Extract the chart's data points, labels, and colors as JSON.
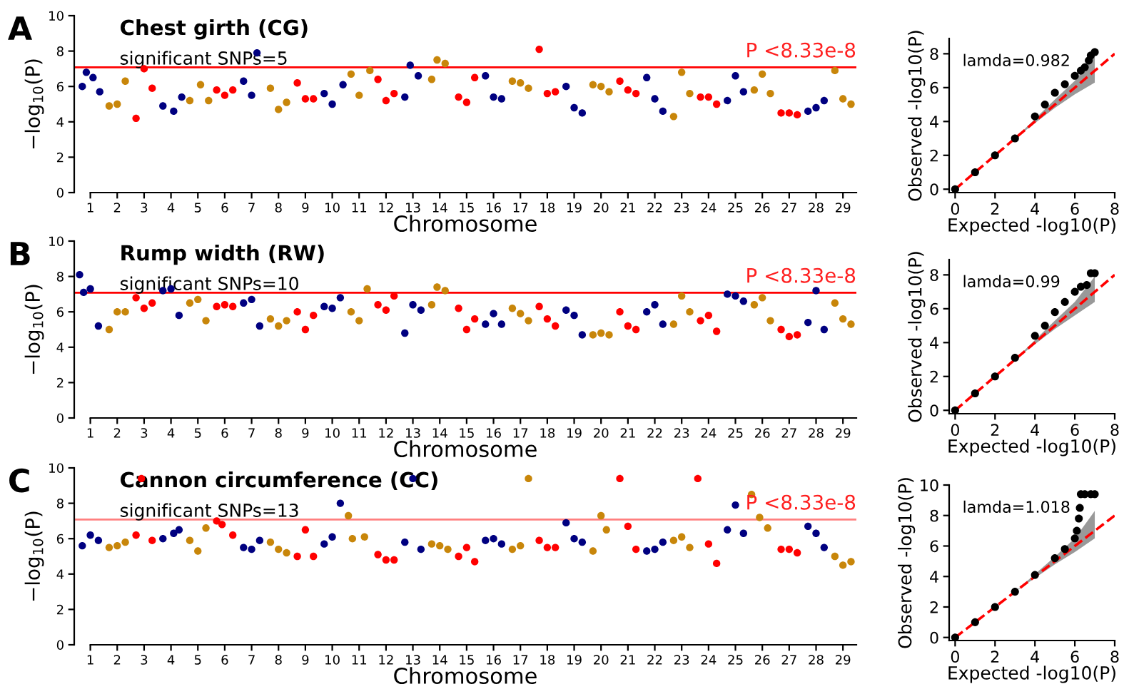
{
  "chart_data": [
    {
      "type": "scatter",
      "title": "Chest girth (CG)",
      "subtitle": "significant SNPs=5",
      "xlabel": "Chromosome",
      "ylabel": "−log$_{10}$(P)",
      "marker": "circle",
      "annotations": [
        "A"
      ],
      "ref_lines": [
        {
          "axis": "y",
          "value": 7.08,
          "color": "#ff0000",
          "label": "P <8.33e-8"
        }
      ],
      "xlim": [
        0.4,
        29.5
      ],
      "xticks": [
        1,
        2,
        3,
        4,
        5,
        6,
        7,
        8,
        9,
        10,
        11,
        12,
        13,
        14,
        15,
        16,
        17,
        18,
        19,
        20,
        21,
        22,
        23,
        24,
        25,
        26,
        27,
        28,
        29
      ],
      "ylim": [
        0,
        10
      ],
      "yticks": [
        0,
        2,
        4,
        6,
        8,
        10
      ],
      "series": [
        {
          "color": "#000080",
          "x": [
            0.7,
            0.85,
            1.1,
            1.35
          ],
          "values": [
            6.0,
            6.8,
            6.5,
            5.7
          ]
        },
        {
          "color": "#c8860a",
          "x": [
            1.7,
            2.0,
            2.3
          ],
          "values": [
            4.9,
            5.0,
            6.3
          ]
        },
        {
          "color": "#ff0000",
          "x": [
            2.7,
            3.0,
            3.3
          ],
          "values": [
            4.2,
            7.0,
            5.9
          ]
        },
        {
          "color": "#000080",
          "x": [
            3.7,
            4.1,
            4.4
          ],
          "values": [
            4.9,
            4.6,
            5.4
          ]
        },
        {
          "color": "#c8860a",
          "x": [
            4.7,
            5.1,
            5.4
          ],
          "values": [
            5.2,
            6.1,
            5.2
          ]
        },
        {
          "color": "#ff0000",
          "x": [
            5.7,
            6.0,
            6.3
          ],
          "values": [
            5.8,
            5.5,
            5.8
          ]
        },
        {
          "color": "#000080",
          "x": [
            6.7,
            7.0,
            7.2
          ],
          "values": [
            6.3,
            5.5,
            7.9
          ]
        },
        {
          "color": "#c8860a",
          "x": [
            7.7,
            8.0,
            8.3
          ],
          "values": [
            5.9,
            4.7,
            5.1
          ]
        },
        {
          "color": "#ff0000",
          "x": [
            8.7,
            9.0,
            9.3
          ],
          "values": [
            6.2,
            5.3,
            5.3
          ]
        },
        {
          "color": "#000080",
          "x": [
            9.7,
            10.0,
            10.4
          ],
          "values": [
            5.6,
            5.0,
            6.1
          ]
        },
        {
          "color": "#c8860a",
          "x": [
            10.7,
            11.0,
            11.4
          ],
          "values": [
            6.7,
            5.5,
            6.9
          ]
        },
        {
          "color": "#ff0000",
          "x": [
            11.7,
            12.0,
            12.3
          ],
          "values": [
            6.4,
            5.2,
            5.6
          ]
        },
        {
          "color": "#000080",
          "x": [
            12.7,
            12.9,
            13.2
          ],
          "values": [
            5.4,
            7.2,
            6.6
          ]
        },
        {
          "color": "#c8860a",
          "x": [
            13.7,
            13.9,
            14.2
          ],
          "values": [
            6.4,
            7.5,
            7.3
          ]
        },
        {
          "color": "#ff0000",
          "x": [
            14.7,
            15.0,
            15.3
          ],
          "values": [
            5.4,
            5.1,
            6.5
          ]
        },
        {
          "color": "#000080",
          "x": [
            15.7,
            16.0,
            16.3
          ],
          "values": [
            6.6,
            5.4,
            5.3
          ]
        },
        {
          "color": "#c8860a",
          "x": [
            16.7,
            17.0,
            17.3
          ],
          "values": [
            6.3,
            6.2,
            5.9
          ]
        },
        {
          "color": "#ff0000",
          "x": [
            17.7,
            18.0,
            18.3
          ],
          "values": [
            8.1,
            5.6,
            5.7
          ]
        },
        {
          "color": "#000080",
          "x": [
            18.7,
            19.0,
            19.3
          ],
          "values": [
            6.0,
            4.8,
            4.5
          ]
        },
        {
          "color": "#c8860a",
          "x": [
            19.7,
            20.0,
            20.3
          ],
          "values": [
            6.1,
            6.0,
            5.7
          ]
        },
        {
          "color": "#ff0000",
          "x": [
            20.7,
            21.0,
            21.3
          ],
          "values": [
            6.3,
            5.8,
            5.6
          ]
        },
        {
          "color": "#000080",
          "x": [
            21.7,
            22.0,
            22.3
          ],
          "values": [
            6.5,
            5.3,
            4.6
          ]
        },
        {
          "color": "#c8860a",
          "x": [
            22.7,
            23.0,
            23.3
          ],
          "values": [
            4.3,
            6.8,
            5.6
          ]
        },
        {
          "color": "#ff0000",
          "x": [
            23.7,
            24.0,
            24.3
          ],
          "values": [
            5.4,
            5.4,
            5.0
          ]
        },
        {
          "color": "#000080",
          "x": [
            24.7,
            25.0,
            25.3
          ],
          "values": [
            5.2,
            6.6,
            5.7
          ]
        },
        {
          "color": "#c8860a",
          "x": [
            25.7,
            26.0,
            26.3
          ],
          "values": [
            5.8,
            6.7,
            5.6
          ]
        },
        {
          "color": "#ff0000",
          "x": [
            26.7,
            27.0,
            27.3
          ],
          "values": [
            4.5,
            4.5,
            4.4
          ]
        },
        {
          "color": "#000080",
          "x": [
            27.7,
            28.0,
            28.3
          ],
          "values": [
            4.6,
            4.8,
            5.2
          ]
        },
        {
          "color": "#c8860a",
          "x": [
            28.7,
            29.0,
            29.3
          ],
          "values": [
            6.9,
            5.3,
            5.0
          ]
        }
      ]
    },
    {
      "type": "scatter",
      "xlabel": "Expected -log10(P)",
      "ylabel": "Observed -log10(P)",
      "annotations": [
        "lamda=0.982"
      ],
      "xlim": [
        -0.3,
        8
      ],
      "xticks": [
        0,
        2,
        4,
        6,
        8
      ],
      "ylim": [
        -0.2,
        8.9
      ],
      "yticks": [
        0,
        2,
        4,
        6,
        8
      ],
      "series": [
        {
          "type": "line",
          "line_style": "dashed",
          "color": "#ff0000",
          "x": [
            0,
            3,
            5,
            6,
            7,
            8
          ],
          "values": [
            0,
            3,
            5,
            6,
            7,
            8
          ],
          "lower": [
            0,
            3,
            4.8,
            5.6,
            6.3,
            null
          ],
          "upper": [
            0,
            3,
            5.3,
            6.4,
            7.9,
            null
          ]
        },
        {
          "color": "#000000",
          "marker": "circle",
          "x": [
            0,
            1,
            2,
            3,
            4,
            4.5,
            5,
            5.5,
            6,
            6.3,
            6.5,
            6.7,
            6.8,
            7.0
          ],
          "values": [
            0,
            1,
            2,
            3,
            4.3,
            5,
            5.7,
            6.2,
            6.7,
            7.0,
            7.2,
            7.6,
            7.9,
            8.1
          ]
        }
      ]
    },
    {
      "type": "scatter",
      "title": "Rump width (RW)",
      "subtitle": "significant SNPs=10",
      "xlabel": "Chromosome",
      "ylabel": "−log$_{10}$(P)",
      "marker": "circle",
      "annotations": [
        "B"
      ],
      "ref_lines": [
        {
          "axis": "y",
          "value": 7.08,
          "color": "#ff0000",
          "label": "P <8.33e-8"
        }
      ],
      "xlim": [
        0.4,
        29.5
      ],
      "xticks": [
        1,
        2,
        3,
        4,
        5,
        6,
        7,
        8,
        9,
        10,
        11,
        12,
        13,
        14,
        15,
        16,
        17,
        18,
        19,
        20,
        21,
        22,
        23,
        24,
        25,
        26,
        27,
        28,
        29
      ],
      "ylim": [
        0,
        10
      ],
      "yticks": [
        0,
        2,
        4,
        6,
        8,
        10
      ],
      "series": [
        {
          "color": "#000080",
          "x": [
            0.6,
            0.75,
            1.0,
            1.3
          ],
          "values": [
            8.1,
            7.1,
            7.3,
            5.2
          ]
        },
        {
          "color": "#c8860a",
          "x": [
            1.7,
            2.0,
            2.3
          ],
          "values": [
            5.0,
            6.0,
            6.0
          ]
        },
        {
          "color": "#ff0000",
          "x": [
            2.7,
            3.0,
            3.3
          ],
          "values": [
            6.8,
            6.2,
            6.5
          ]
        },
        {
          "color": "#000080",
          "x": [
            3.7,
            4.0,
            4.3
          ],
          "values": [
            7.2,
            7.3,
            5.8
          ]
        },
        {
          "color": "#c8860a",
          "x": [
            4.7,
            5.0,
            5.3
          ],
          "values": [
            6.5,
            6.7,
            5.5
          ]
        },
        {
          "color": "#ff0000",
          "x": [
            5.7,
            6.0,
            6.3
          ],
          "values": [
            6.3,
            6.4,
            6.3
          ]
        },
        {
          "color": "#000080",
          "x": [
            6.7,
            7.0,
            7.3
          ],
          "values": [
            6.5,
            6.7,
            5.2
          ]
        },
        {
          "color": "#c8860a",
          "x": [
            7.7,
            8.0,
            8.3
          ],
          "values": [
            5.6,
            5.2,
            5.5
          ]
        },
        {
          "color": "#ff0000",
          "x": [
            8.7,
            9.0,
            9.3
          ],
          "values": [
            6.0,
            5.0,
            5.8
          ]
        },
        {
          "color": "#000080",
          "x": [
            9.7,
            10.0,
            10.3
          ],
          "values": [
            6.3,
            6.2,
            6.8
          ]
        },
        {
          "color": "#c8860a",
          "x": [
            10.7,
            11.0,
            11.3
          ],
          "values": [
            6.0,
            5.5,
            7.3
          ]
        },
        {
          "color": "#ff0000",
          "x": [
            11.7,
            12.0,
            12.3
          ],
          "values": [
            6.4,
            6.1,
            6.9
          ]
        },
        {
          "color": "#000080",
          "x": [
            12.7,
            13.0,
            13.3
          ],
          "values": [
            4.8,
            6.4,
            6.1
          ]
        },
        {
          "color": "#c8860a",
          "x": [
            13.7,
            13.9,
            14.2
          ],
          "values": [
            6.4,
            7.4,
            7.2
          ]
        },
        {
          "color": "#ff0000",
          "x": [
            14.7,
            15.0,
            15.3
          ],
          "values": [
            6.2,
            5.0,
            5.6
          ]
        },
        {
          "color": "#000080",
          "x": [
            15.7,
            16.0,
            16.3
          ],
          "values": [
            5.3,
            5.9,
            5.3
          ]
        },
        {
          "color": "#c8860a",
          "x": [
            16.7,
            17.0,
            17.3
          ],
          "values": [
            6.2,
            5.9,
            5.5
          ]
        },
        {
          "color": "#ff0000",
          "x": [
            17.7,
            18.0,
            18.3
          ],
          "values": [
            6.3,
            5.6,
            5.2
          ]
        },
        {
          "color": "#000080",
          "x": [
            18.7,
            19.0,
            19.3
          ],
          "values": [
            6.1,
            5.8,
            4.7
          ]
        },
        {
          "color": "#c8860a",
          "x": [
            19.7,
            20.0,
            20.3
          ],
          "values": [
            4.7,
            4.8,
            4.7
          ]
        },
        {
          "color": "#ff0000",
          "x": [
            20.7,
            21.0,
            21.3
          ],
          "values": [
            6.0,
            5.2,
            5.0
          ]
        },
        {
          "color": "#000080",
          "x": [
            21.7,
            22.0,
            22.3
          ],
          "values": [
            6.0,
            6.4,
            5.3
          ]
        },
        {
          "color": "#c8860a",
          "x": [
            22.7,
            23.0,
            23.3
          ],
          "values": [
            5.3,
            6.9,
            6.0
          ]
        },
        {
          "color": "#ff0000",
          "x": [
            23.7,
            24.0,
            24.3
          ],
          "values": [
            5.5,
            5.8,
            4.9
          ]
        },
        {
          "color": "#000080",
          "x": [
            24.7,
            25.0,
            25.3
          ],
          "values": [
            7.0,
            6.9,
            6.6
          ]
        },
        {
          "color": "#c8860a",
          "x": [
            25.7,
            26.0,
            26.3
          ],
          "values": [
            6.4,
            6.8,
            5.5
          ]
        },
        {
          "color": "#ff0000",
          "x": [
            26.7,
            27.0,
            27.3
          ],
          "values": [
            5.0,
            4.6,
            4.7
          ]
        },
        {
          "color": "#000080",
          "x": [
            27.7,
            28.0,
            28.3
          ],
          "values": [
            5.4,
            7.2,
            5.0
          ]
        },
        {
          "color": "#c8860a",
          "x": [
            28.7,
            29.0,
            29.3
          ],
          "values": [
            6.5,
            5.6,
            5.3
          ]
        }
      ]
    },
    {
      "type": "scatter",
      "xlabel": "Expected -log10(P)",
      "ylabel": "Observed -log10(P)",
      "annotations": [
        "lamda=0.99"
      ],
      "xlim": [
        -0.3,
        8
      ],
      "xticks": [
        0,
        2,
        4,
        6,
        8
      ],
      "ylim": [
        -0.2,
        8.9
      ],
      "yticks": [
        0,
        2,
        4,
        6,
        8
      ],
      "series": [
        {
          "type": "line",
          "line_style": "dashed",
          "color": "#ff0000",
          "x": [
            0,
            3,
            5,
            6,
            7,
            8
          ],
          "values": [
            0,
            3,
            5,
            6,
            7,
            8
          ],
          "lower": [
            0,
            3,
            4.8,
            5.6,
            6.4,
            null
          ],
          "upper": [
            0,
            3,
            5.3,
            6.4,
            7.9,
            null
          ]
        },
        {
          "color": "#000000",
          "marker": "circle",
          "x": [
            0,
            1,
            2,
            3,
            4,
            4.5,
            5,
            5.5,
            6,
            6.3,
            6.6,
            6.8,
            7.0
          ],
          "values": [
            0,
            1,
            2,
            3.1,
            4.4,
            5,
            5.8,
            6.4,
            7.0,
            7.3,
            7.4,
            8.1,
            8.1
          ]
        }
      ]
    },
    {
      "type": "scatter",
      "title": "Cannon circumference (CC)",
      "subtitle": "significant SNPs=13",
      "xlabel": "Chromosome",
      "ylabel": "−log$_{10}$(P)",
      "marker": "circle",
      "annotations": [
        "C"
      ],
      "ref_lines": [
        {
          "axis": "y",
          "value": 7.08,
          "color": "#ff8080",
          "label": "P <8.33e-8"
        }
      ],
      "xlim": [
        0.4,
        29.5
      ],
      "xticks": [
        1,
        2,
        3,
        4,
        5,
        6,
        7,
        8,
        9,
        10,
        11,
        12,
        13,
        14,
        15,
        16,
        17,
        18,
        19,
        20,
        21,
        22,
        23,
        24,
        25,
        26,
        27,
        28,
        29
      ],
      "ylim": [
        0,
        10
      ],
      "yticks": [
        0,
        2,
        4,
        6,
        8,
        10
      ],
      "series": [
        {
          "color": "#000080",
          "x": [
            0.7,
            1.0,
            1.3
          ],
          "values": [
            5.6,
            6.2,
            5.9
          ]
        },
        {
          "color": "#c8860a",
          "x": [
            1.7,
            2.0,
            2.3
          ],
          "values": [
            5.5,
            5.6,
            5.8
          ]
        },
        {
          "color": "#ff0000",
          "x": [
            2.7,
            2.9,
            3.3
          ],
          "values": [
            6.2,
            9.4,
            5.9
          ]
        },
        {
          "color": "#000080",
          "x": [
            3.7,
            4.1,
            4.3
          ],
          "values": [
            6.0,
            6.3,
            6.5
          ]
        },
        {
          "color": "#c8860a",
          "x": [
            4.7,
            5.0,
            5.3
          ],
          "values": [
            5.9,
            5.3,
            6.6
          ]
        },
        {
          "color": "#ff0000",
          "x": [
            5.7,
            5.9,
            6.3
          ],
          "values": [
            7.0,
            6.8,
            6.2
          ]
        },
        {
          "color": "#000080",
          "x": [
            6.7,
            7.0,
            7.3
          ],
          "values": [
            5.5,
            5.4,
            5.9
          ]
        },
        {
          "color": "#c8860a",
          "x": [
            7.7,
            8.0,
            8.3
          ],
          "values": [
            5.8,
            5.4,
            5.2
          ]
        },
        {
          "color": "#ff0000",
          "x": [
            8.7,
            9.0,
            9.3
          ],
          "values": [
            5.0,
            6.5,
            5.0
          ]
        },
        {
          "color": "#000080",
          "x": [
            9.7,
            10.0,
            10.3
          ],
          "values": [
            5.7,
            6.1,
            8.0
          ]
        },
        {
          "color": "#c8860a",
          "x": [
            10.6,
            10.75,
            11.2
          ],
          "values": [
            7.3,
            6.0,
            6.1
          ]
        },
        {
          "color": "#ff0000",
          "x": [
            11.7,
            12.0,
            12.3
          ],
          "values": [
            5.1,
            4.8,
            4.8
          ]
        },
        {
          "color": "#000080",
          "x": [
            12.7,
            13.0,
            13.3
          ],
          "values": [
            5.8,
            9.4,
            5.4
          ]
        },
        {
          "color": "#c8860a",
          "x": [
            13.7,
            14.0,
            14.3
          ],
          "values": [
            5.7,
            5.6,
            5.4
          ]
        },
        {
          "color": "#ff0000",
          "x": [
            14.7,
            15.0,
            15.3
          ],
          "values": [
            5.0,
            5.5,
            4.7
          ]
        },
        {
          "color": "#000080",
          "x": [
            15.7,
            16.0,
            16.3
          ],
          "values": [
            5.9,
            6.0,
            5.7
          ]
        },
        {
          "color": "#c8860a",
          "x": [
            16.7,
            17.0,
            17.3
          ],
          "values": [
            5.4,
            5.6,
            9.4
          ]
        },
        {
          "color": "#ff0000",
          "x": [
            17.7,
            18.0,
            18.3
          ],
          "values": [
            5.9,
            5.5,
            5.5
          ]
        },
        {
          "color": "#000080",
          "x": [
            18.7,
            19.0,
            19.3
          ],
          "values": [
            6.9,
            6.0,
            5.8
          ]
        },
        {
          "color": "#c8860a",
          "x": [
            19.7,
            20.0,
            20.2
          ],
          "values": [
            5.3,
            7.3,
            6.5
          ]
        },
        {
          "color": "#ff0000",
          "x": [
            20.7,
            21.0,
            21.3
          ],
          "values": [
            9.4,
            6.7,
            5.4
          ]
        },
        {
          "color": "#000080",
          "x": [
            21.7,
            22.0,
            22.3
          ],
          "values": [
            5.3,
            5.4,
            5.8
          ]
        },
        {
          "color": "#c8860a",
          "x": [
            22.7,
            23.0,
            23.3
          ],
          "values": [
            5.9,
            6.1,
            5.5
          ]
        },
        {
          "color": "#ff0000",
          "x": [
            23.6,
            24.0,
            24.3
          ],
          "values": [
            9.4,
            5.7,
            4.6
          ]
        },
        {
          "color": "#000080",
          "x": [
            24.7,
            25.0,
            25.3
          ],
          "values": [
            6.5,
            7.9,
            6.3
          ]
        },
        {
          "color": "#c8860a",
          "x": [
            25.6,
            25.9,
            26.2
          ],
          "values": [
            8.5,
            7.2,
            6.6
          ]
        },
        {
          "color": "#ff0000",
          "x": [
            26.7,
            27.0,
            27.3
          ],
          "values": [
            5.4,
            5.4,
            5.2
          ]
        },
        {
          "color": "#000080",
          "x": [
            27.7,
            28.0,
            28.3
          ],
          "values": [
            6.7,
            6.3,
            5.5
          ]
        },
        {
          "color": "#c8860a",
          "x": [
            28.7,
            29.0,
            29.3
          ],
          "values": [
            5.0,
            4.5,
            4.7
          ]
        }
      ]
    },
    {
      "type": "scatter",
      "xlabel": "Expected -log10(P)",
      "ylabel": "Observed -log10(P)",
      "annotations": [
        "lamda=1.018"
      ],
      "xlim": [
        -0.3,
        8
      ],
      "xticks": [
        0,
        2,
        4,
        6,
        8
      ],
      "ylim": [
        -0.2,
        10
      ],
      "yticks": [
        0,
        2,
        4,
        6,
        8,
        10
      ],
      "series": [
        {
          "type": "line",
          "line_style": "dashed",
          "color": "#ff0000",
          "x": [
            0,
            3,
            5,
            6,
            7,
            8
          ],
          "values": [
            0,
            3,
            5,
            6,
            7,
            8
          ],
          "lower": [
            0,
            3,
            4.8,
            5.6,
            6.5,
            null
          ],
          "upper": [
            0,
            3,
            5.3,
            6.5,
            8.3,
            null
          ]
        },
        {
          "color": "#000000",
          "marker": "circle",
          "x": [
            0,
            1,
            2,
            3,
            4,
            5,
            5.5,
            6,
            6.1,
            6.2,
            6.25,
            6.3,
            6.5,
            6.8,
            7.0
          ],
          "values": [
            0,
            1,
            2,
            3,
            4.1,
            5.2,
            5.8,
            6.5,
            7.0,
            7.8,
            8.5,
            9.4,
            9.4,
            9.4,
            9.4
          ]
        }
      ]
    }
  ]
}
